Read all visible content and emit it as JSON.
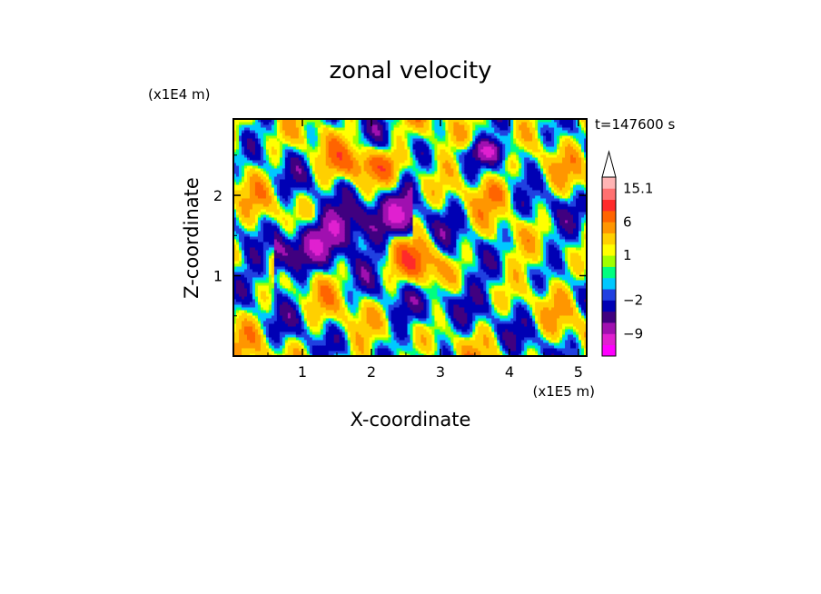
{
  "chart_data": {
    "type": "heatmap",
    "title": "zonal velocity",
    "xlabel": "X-coordinate",
    "ylabel": "Z-coordinate",
    "x_unit": "(x1E5 m)",
    "y_unit": "(x1E4 m)",
    "time_label": "t=147600 s",
    "x_ticks": [
      "1",
      "2",
      "3",
      "4",
      "5"
    ],
    "y_ticks": [
      "1",
      "2"
    ],
    "xlim": [
      0,
      5.12
    ],
    "ylim": [
      0,
      2.95
    ],
    "x_tick_values": [
      1,
      2,
      3,
      4,
      5
    ],
    "y_tick_values": [
      1,
      2
    ],
    "colorbar": {
      "labels": [
        "15.1",
        "6",
        "1",
        "−2",
        "−9"
      ],
      "levels": [
        -18,
        -12,
        -9,
        -6,
        -4,
        -2,
        -1,
        0,
        0.5,
        1,
        2,
        4,
        6,
        9,
        12,
        15.1,
        18
      ],
      "colors": [
        "#ff00ff",
        "#e020d0",
        "#a010b0",
        "#400080",
        "#0000b4",
        "#2040e0",
        "#00c8ff",
        "#00ff7f",
        "#a0ff00",
        "#ffff00",
        "#ffd000",
        "#ff9600",
        "#ff6400",
        "#ff2a2a",
        "#ff7070",
        "#ffb4b4"
      ],
      "label_levels": [
        15.1,
        6,
        1,
        -2,
        -9
      ]
    },
    "grid": false
  }
}
